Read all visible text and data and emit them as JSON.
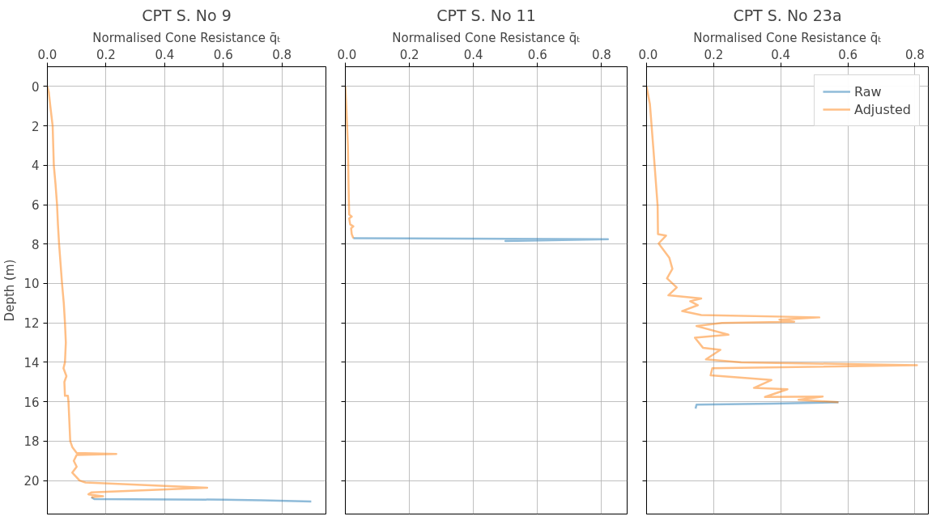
{
  "chart_data": [
    {
      "type": "line",
      "title": "CPT S. No 9",
      "xlabel": "Normalised Cone Resistance q̄ₜ",
      "ylabel": "Depth (m)",
      "xlim": [
        0,
        0.95
      ],
      "ylim": [
        21.7,
        -1
      ],
      "xticks": [
        {
          "value": 0,
          "label": "0.0"
        },
        {
          "value": 0.2,
          "label": "0.2"
        },
        {
          "value": 0.4,
          "label": "0.4"
        },
        {
          "value": 0.6,
          "label": "0.6"
        },
        {
          "value": 0.8,
          "label": "0.8"
        }
      ],
      "yticks": [
        0,
        2,
        4,
        6,
        8,
        10,
        12,
        14,
        16,
        18,
        20
      ],
      "grid": true,
      "line_style": "solid",
      "marker": "none",
      "series": [
        {
          "color": "#1f77b4",
          "x": [
            0.15,
            0.16,
            0.6,
            0.73,
            0.9
          ],
          "values": [
            20.85,
            20.94,
            20.97,
            21.0,
            21.06
          ]
        },
        {
          "color": "#ff7f0e",
          "x": [
            0.0,
            0.005,
            0.01,
            0.018,
            0.02,
            0.022,
            0.028,
            0.033,
            0.036,
            0.04,
            0.045,
            0.05,
            0.056,
            0.06,
            0.063,
            0.06,
            0.055,
            0.065,
            0.058,
            0.06,
            0.07,
            0.072,
            0.075,
            0.078,
            0.085,
            0.1,
            0.235,
            0.1,
            0.09,
            0.1,
            0.085,
            0.11,
            0.13,
            0.545,
            0.15,
            0.14,
            0.19,
            0.15
          ],
          "values": [
            0,
            0.3,
            1,
            2,
            3,
            4,
            5,
            6,
            7,
            8,
            9,
            10,
            11,
            12,
            13,
            14,
            14.3,
            14.7,
            15,
            15.7,
            15.7,
            16,
            17,
            18,
            18.3,
            18.6,
            18.65,
            18.7,
            19,
            19.3,
            19.6,
            20,
            20.1,
            20.37,
            20.6,
            20.7,
            20.8,
            20.85
          ]
        }
      ]
    },
    {
      "type": "line",
      "title": "CPT S. No 11",
      "xlabel": "Normalised Cone Resistance q̄ₜ",
      "xlim": [
        0,
        0.88
      ],
      "ylim": [
        21.7,
        -1
      ],
      "xticks": [
        {
          "value": 0,
          "label": "0.0"
        },
        {
          "value": 0.2,
          "label": "0.2"
        },
        {
          "value": 0.4,
          "label": "0.4"
        },
        {
          "value": 0.6,
          "label": "0.6"
        },
        {
          "value": 0.8,
          "label": "0.8"
        }
      ],
      "yticks": [
        0,
        2,
        4,
        6,
        8,
        10,
        12,
        14,
        16,
        18,
        20
      ],
      "tick_labels": "x",
      "grid": true,
      "line_style": "solid",
      "marker": "none",
      "series": [
        {
          "color": "#1f77b4",
          "x": [
            0.025,
            0.82,
            0.5,
            0.6
          ],
          "values": [
            7.7,
            7.75,
            7.85,
            7.8
          ]
        },
        {
          "color": "#ff7f0e",
          "x": [
            0.0,
            0.003,
            0.008,
            0.01,
            0.012,
            0.02,
            0.012,
            0.015,
            0.025,
            0.018,
            0.02,
            0.025
          ],
          "values": [
            0,
            1,
            3,
            5,
            6.5,
            6.6,
            6.7,
            7.0,
            7.1,
            7.2,
            7.5,
            7.7
          ]
        }
      ]
    },
    {
      "type": "line",
      "title": "CPT S. No 23a",
      "xlabel": "Normalised Cone Resistance q̄ₜ",
      "xlim": [
        0,
        0.84
      ],
      "ylim": [
        21.7,
        -1
      ],
      "xticks": [
        {
          "value": 0,
          "label": "0.0"
        },
        {
          "value": 0.2,
          "label": "0.2"
        },
        {
          "value": 0.4,
          "label": "0.4"
        },
        {
          "value": 0.6,
          "label": "0.6"
        },
        {
          "value": 0.8,
          "label": "0.8"
        }
      ],
      "yticks": [
        0,
        2,
        4,
        6,
        8,
        10,
        12,
        14,
        16,
        18,
        20
      ],
      "tick_labels": "x",
      "grid": true,
      "legend": "top right",
      "line_style": "solid",
      "marker": "none",
      "series": [
        {
          "name": "Raw",
          "color": "#1f77b4",
          "x": [
            0.572,
            0.377,
            0.149,
            0.146
          ],
          "values": [
            16.03,
            16.1,
            16.15,
            16.35
          ]
        },
        {
          "name": "Adjusted",
          "color": "#ff7f0e",
          "x": [
            0.0,
            0.01,
            0.02,
            0.033,
            0.034,
            0.058,
            0.036,
            0.068,
            0.077,
            0.061,
            0.09,
            0.065,
            0.163,
            0.13,
            0.153,
            0.106,
            0.163,
            0.515,
            0.396,
            0.44,
            0.225,
            0.149,
            0.244,
            0.144,
            0.168,
            0.22,
            0.177,
            0.282,
            0.806,
            0.196,
            0.191,
            0.372,
            0.32,
            0.42,
            0.353,
            0.525,
            0.453,
            0.572
          ],
          "values": [
            0,
            0.9,
            3.1,
            6.06,
            7.5,
            7.57,
            7.97,
            8.7,
            9.26,
            9.74,
            10.2,
            10.6,
            10.76,
            10.9,
            11.1,
            11.4,
            11.6,
            11.72,
            11.84,
            11.94,
            12.0,
            12.16,
            12.6,
            12.75,
            13.26,
            13.37,
            13.85,
            14.0,
            14.15,
            14.3,
            14.66,
            14.9,
            15.3,
            15.37,
            15.76,
            15.74,
            15.9,
            16.03
          ]
        }
      ]
    }
  ]
}
